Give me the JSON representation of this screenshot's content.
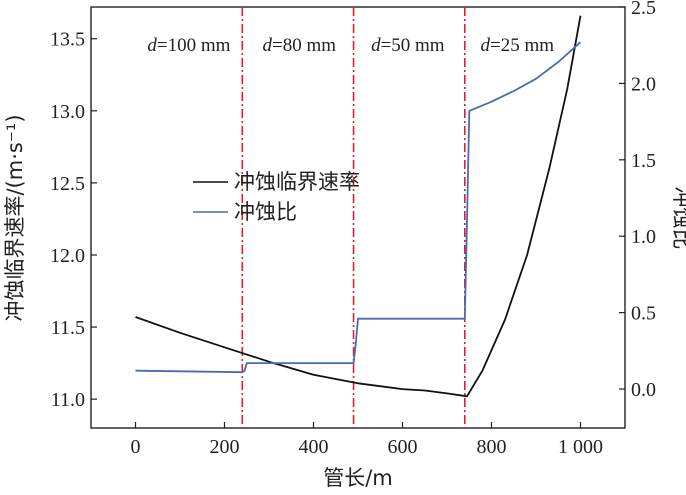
{
  "chart_data": {
    "type": "line",
    "xlabel": "管长/m",
    "ylabel_left": "冲蚀临界速率/(m·s⁻¹)",
    "ylabel_right": "冲蚀比",
    "xlim": [
      -100,
      1100
    ],
    "ylim_left": [
      10.8,
      13.72
    ],
    "ylim_right": [
      -0.255,
      2.5
    ],
    "x_ticks": [
      0,
      200,
      400,
      600,
      800,
      1000
    ],
    "x_tick_labels": [
      "0",
      "200",
      "400",
      "600",
      "800",
      "1 000"
    ],
    "y_left_ticks": [
      11.0,
      11.5,
      12.0,
      12.5,
      13.0,
      13.5
    ],
    "y_left_tick_labels": [
      "11.0",
      "11.5",
      "12.0",
      "12.5",
      "13.0",
      "13.5"
    ],
    "y_right_ticks": [
      0.0,
      0.5,
      1.0,
      1.5,
      2.0,
      2.5
    ],
    "y_right_tick_labels": [
      "0.0",
      "0.5",
      "1.0",
      "1.5",
      "2.0",
      "2.5"
    ],
    "grid": false,
    "legend_position": "center-left",
    "dividers": [
      240,
      490,
      740
    ],
    "segments": [
      {
        "italic": "d",
        "rest": "=100 mm",
        "x_center": 120
      },
      {
        "italic": "d",
        "rest": "=80 mm",
        "x_center": 368
      },
      {
        "italic": "d",
        "rest": "=50 mm",
        "x_center": 612
      },
      {
        "italic": "d",
        "rest": "=25 mm",
        "x_center": 858
      }
    ],
    "series": [
      {
        "name": "冲蚀临界速率",
        "axis": "left",
        "color": "#111111",
        "x": [
          0,
          100,
          200,
          300,
          400,
          500,
          600,
          650,
          700,
          745,
          780,
          830,
          880,
          930,
          970,
          1000
        ],
        "y": [
          11.57,
          11.46,
          11.36,
          11.26,
          11.17,
          11.11,
          11.07,
          11.06,
          11.04,
          11.02,
          11.2,
          11.55,
          12.0,
          12.6,
          13.15,
          13.66
        ]
      },
      {
        "name": "冲蚀比",
        "axis": "right",
        "color": "#4a6aad",
        "x": [
          0,
          240,
          245,
          250,
          490,
          495,
          500,
          740,
          745,
          750,
          800,
          850,
          900,
          950,
          1000
        ],
        "y": [
          0.12,
          0.11,
          0.12,
          0.17,
          0.17,
          0.3,
          0.46,
          0.46,
          1.1,
          1.82,
          1.88,
          1.95,
          2.03,
          2.14,
          2.27
        ]
      }
    ],
    "colors": {
      "divider": "#e0202a",
      "black_series": "#111111",
      "blue_series": "#4a6aad"
    }
  }
}
